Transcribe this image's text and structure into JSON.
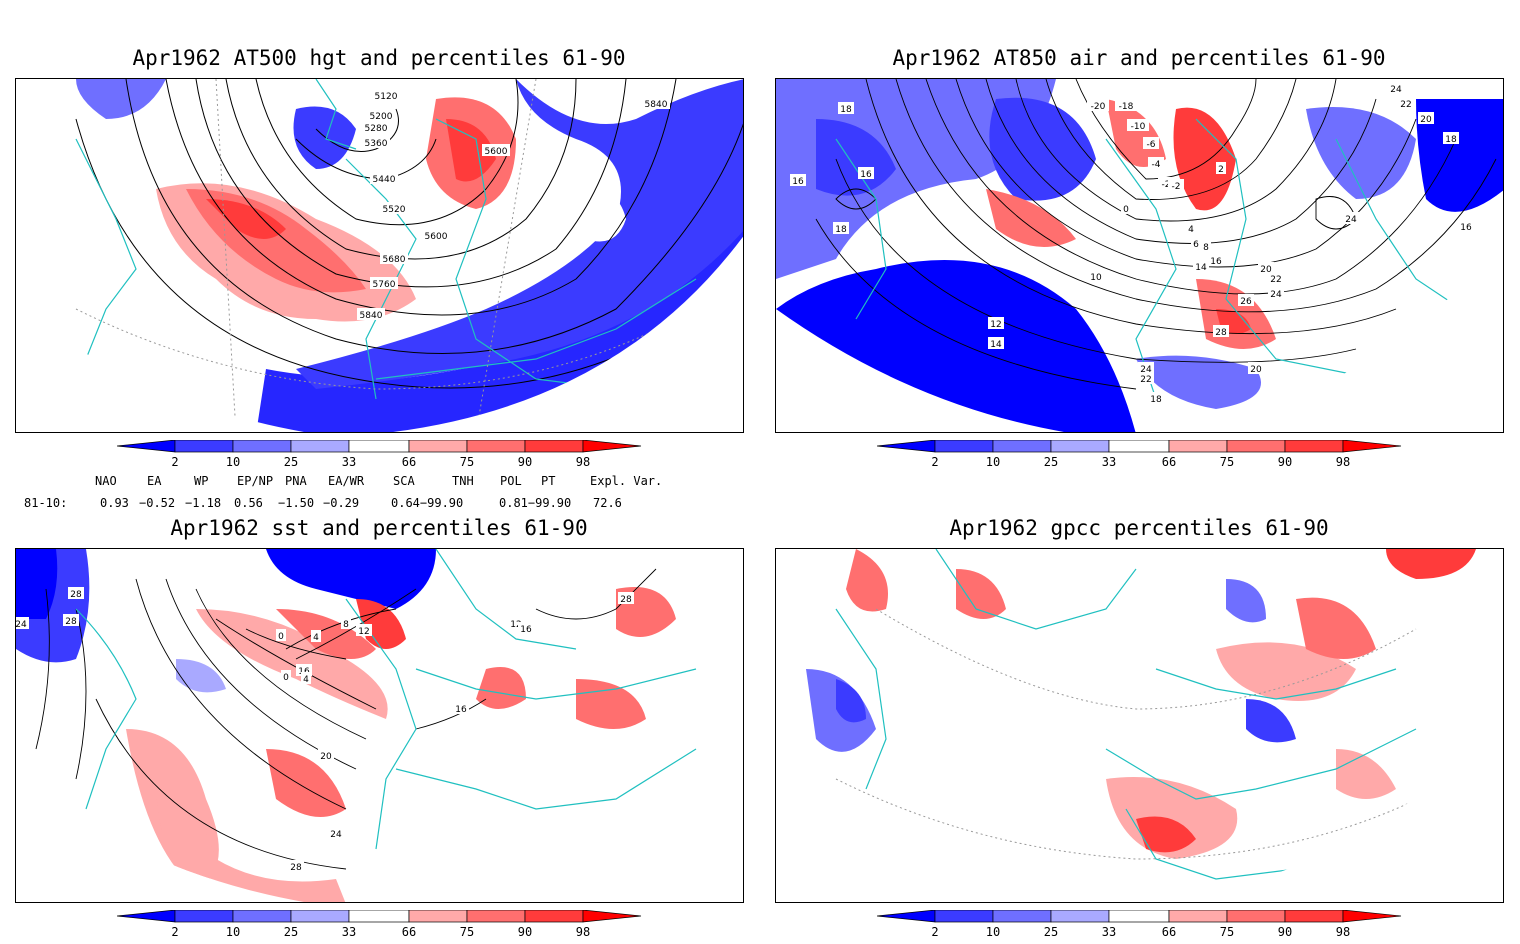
{
  "panels": [
    {
      "title": "Apr1962 AT500 hgt and percentiles 61-90",
      "contour_labels": [
        "5120",
        "5200",
        "5280",
        "5360",
        "5440",
        "5520",
        "5600",
        "5600",
        "5680",
        "5760",
        "5840",
        "5840"
      ]
    },
    {
      "title": "Apr1962 AT850 air and percentiles 61-90",
      "contour_labels": [
        "18",
        "16",
        "16",
        "18",
        "-20",
        "-18",
        "-10",
        "-6",
        "-4",
        "-2",
        "0",
        "2",
        "-2",
        "4",
        "6",
        "8",
        "10",
        "14",
        "16",
        "20",
        "22",
        "24",
        "24",
        "24",
        "22",
        "20",
        "18",
        "16",
        "12",
        "14",
        "26",
        "28",
        "24",
        "22",
        "20",
        "18"
      ]
    },
    {
      "title": "Apr1962 sst and percentiles 61-90",
      "contour_labels": [
        "24",
        "28",
        "28",
        "0",
        "4",
        "8",
        "12",
        "16",
        "0",
        "4",
        "16",
        "20",
        "24",
        "28",
        "28",
        "12",
        "16"
      ]
    },
    {
      "title": "Apr1962 gpcc percentiles 61-90",
      "contour_labels": []
    }
  ],
  "colorbar": {
    "labels": [
      "2",
      "10",
      "25",
      "33",
      "66",
      "75",
      "90",
      "98"
    ],
    "colors": [
      "#0000ff",
      "#3b3bff",
      "#6f6fff",
      "#a9a9ff",
      "#ffffff",
      "#ffa9a9",
      "#ff6f6f",
      "#ff3b3b",
      "#ff0000"
    ]
  },
  "indices": {
    "row_label": "81-10:",
    "names": [
      "NAO",
      "EA",
      "WP",
      "EP/NP",
      "PNA",
      "EA/WR",
      "SCA",
      "TNH",
      "POL",
      "PT",
      "Expl. Var."
    ],
    "values": [
      "0.93",
      "−0.52",
      "−1.18",
      "0.56",
      "−1.50",
      "−0.29",
      "0.64−99.90",
      "0.81−99.90",
      "72.6"
    ]
  },
  "colors": {
    "border": "#20c0c0",
    "contour": "#000000",
    "strong_blue": "#0000ff",
    "strong_red": "#ff0000"
  }
}
